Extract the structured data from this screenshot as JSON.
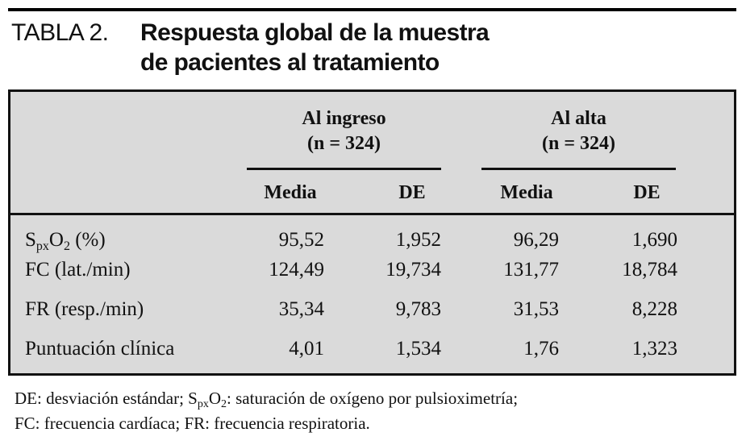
{
  "title": {
    "label": "TABLA 2.",
    "line1": "Respuesta global de la muestra",
    "line2": "de pacientes al tratamiento"
  },
  "table": {
    "groups": [
      {
        "name": "Al ingreso",
        "n": "(n = 324)"
      },
      {
        "name": "Al alta",
        "n": "(n = 324)"
      }
    ],
    "subheaders": [
      "Media",
      "DE",
      "Media",
      "DE"
    ],
    "rows": [
      {
        "label": {
          "a": "S",
          "sub1": "px",
          "b": "O",
          "sub2": "2",
          "c": " (%)"
        },
        "values": [
          "95,52",
          "1,952",
          "96,29",
          "1,690"
        ]
      },
      {
        "label": {
          "a": "FC (lat./min)"
        },
        "values": [
          "124,49",
          "19,734",
          "131,77",
          "18,784"
        ]
      },
      {
        "label": {
          "a": "FR (resp./min)"
        },
        "values": [
          "35,34",
          "9,783",
          "31,53",
          "8,228"
        ]
      },
      {
        "label": {
          "a": "Puntuación clínica"
        },
        "values": [
          "4,01",
          "1,534",
          "1,76",
          "1,323"
        ]
      }
    ]
  },
  "footnote": {
    "p1": "DE: desviación estándar; S",
    "p1sub1": "px",
    "p1b": "O",
    "p1sub2": "2",
    "p1c": ": saturación de oxígeno por pulsioximetría;",
    "line2": "FC: frecuencia cardíaca; FR: frecuencia respiratoria."
  }
}
